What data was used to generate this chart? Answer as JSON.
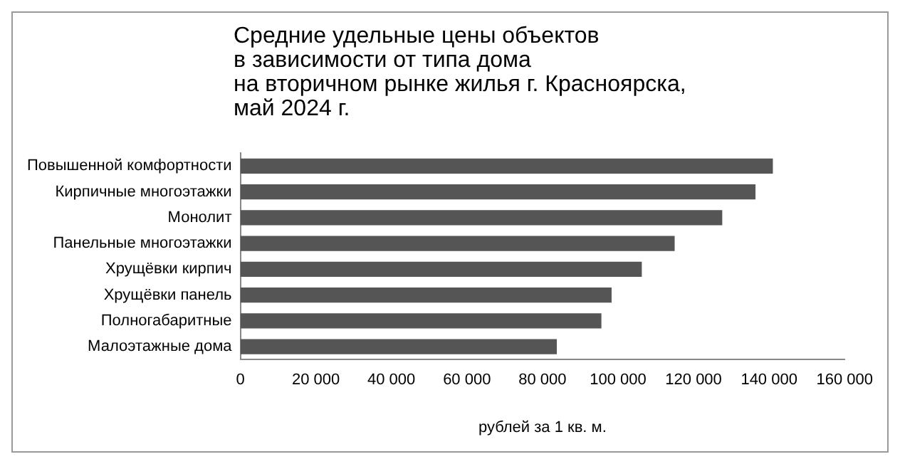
{
  "chart_data": {
    "type": "bar",
    "orientation": "horizontal",
    "title": "Средние удельные цены объектов\nв зависимости от типа дома\nна вторичном рынке жилья г. Красноярска,\nмай 2024 г.",
    "categories": [
      "Повышенной комфортности",
      "Кирпичные многоэтажки",
      "Монолит",
      "Панельные многоэтажки",
      "Хрущёвки кирпич",
      "Хрущёвки панель",
      "Полногабаритные",
      "Малоэтажные дома"
    ],
    "values": [
      141000,
      136400,
      127600,
      115000,
      106300,
      98300,
      95600,
      83800
    ],
    "color": "#555555",
    "xlabel": "рублей за 1 кв. м.",
    "xlim": [
      0,
      160000
    ],
    "xticks": [
      {
        "value": 0,
        "label": "0"
      },
      {
        "value": 20000,
        "label": "20 000"
      },
      {
        "value": 40000,
        "label": "40 000"
      },
      {
        "value": 60000,
        "label": "60 000"
      },
      {
        "value": 80000,
        "label": "80 000"
      },
      {
        "value": 100000,
        "label": "100 000"
      },
      {
        "value": 120000,
        "label": "120 000"
      },
      {
        "value": 140000,
        "label": "140 000"
      },
      {
        "value": 160000,
        "label": "160 000"
      }
    ],
    "grid": false,
    "legend": false
  }
}
